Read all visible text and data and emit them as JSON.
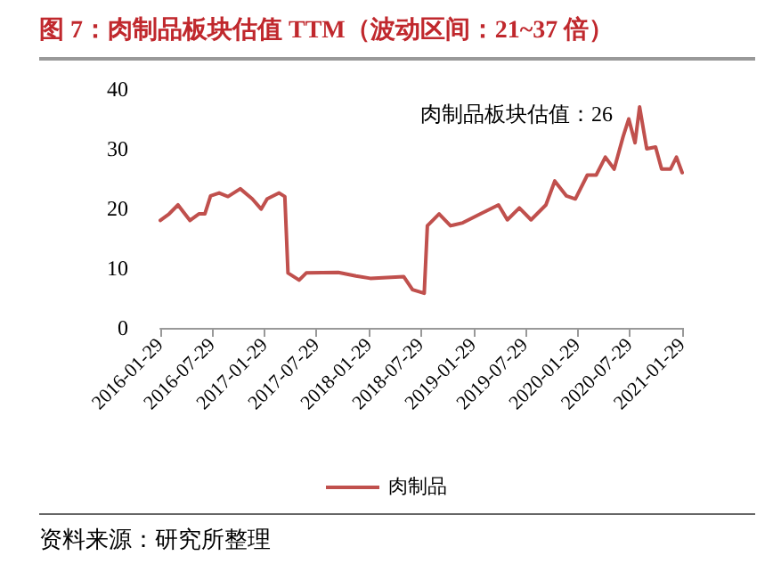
{
  "chart_data": {
    "type": "line",
    "title": "图 7：肉制品板块估值 TTM（波动区间：21~37 倍）",
    "x": [
      "2016-01-29",
      "2016-02-29",
      "2016-03-31",
      "2016-04-19",
      "2016-05-12",
      "2016-06-12",
      "2016-07-03",
      "2016-07-23",
      "2016-08-22",
      "2016-09-22",
      "2016-11-04",
      "2016-12-16",
      "2017-01-16",
      "2017-02-06",
      "2017-03-20",
      "2017-04-09",
      "2017-04-20",
      "2017-05-29",
      "2017-06-23",
      "2017-10-13",
      "2017-12-14",
      "2018-02-02",
      "2018-05-30",
      "2018-06-30",
      "2018-08-10",
      "2018-08-21",
      "2018-10-01",
      "2018-11-10",
      "2018-12-23",
      "2019-02-23",
      "2019-04-27",
      "2019-05-28",
      "2019-07-09",
      "2019-08-19",
      "2019-10-10",
      "2019-11-10",
      "2019-12-21",
      "2020-01-21",
      "2020-03-03",
      "2020-04-03",
      "2020-05-05",
      "2020-06-05",
      "2020-07-06",
      "2020-07-26",
      "2020-08-17",
      "2020-09-02",
      "2020-09-27",
      "2020-10-28",
      "2020-11-18",
      "2020-12-19",
      "2021-01-09",
      "2021-01-29"
    ],
    "series": [
      {
        "name": "肉制品",
        "color": "#c0504d",
        "values": [
          18,
          19.1,
          20.6,
          19.4,
          18,
          19.1,
          19.1,
          22.1,
          22.6,
          22,
          23.3,
          21.6,
          19.9,
          21.6,
          22.6,
          22,
          9.2,
          8,
          9.2,
          9.3,
          8.7,
          8.3,
          8.6,
          6.4,
          5.8,
          17.1,
          19.1,
          17.1,
          17.6,
          19.1,
          20.6,
          18.1,
          20.1,
          18.1,
          20.6,
          24.6,
          22.1,
          21.6,
          25.6,
          25.6,
          28.6,
          26.6,
          32,
          35,
          31,
          37,
          30,
          30.3,
          26.6,
          26.6,
          28.6,
          26
        ]
      }
    ],
    "xlim": [
      "2016-01-29",
      "2021-01-29"
    ],
    "xticks": [
      "2016-01-29",
      "2016-07-29",
      "2017-01-29",
      "2017-07-29",
      "2018-01-29",
      "2018-07-29",
      "2019-01-29",
      "2019-07-29",
      "2020-01-29",
      "2020-07-29",
      "2021-01-29"
    ],
    "ylim": [
      0,
      40
    ],
    "yticks": [
      0,
      10,
      20,
      30,
      40
    ],
    "grid": false,
    "legend": "bottom",
    "marker": "none",
    "line_style": "solid",
    "annotations": [
      "肉制品板块估值：26",
      "资料来源：研究所整理"
    ]
  }
}
